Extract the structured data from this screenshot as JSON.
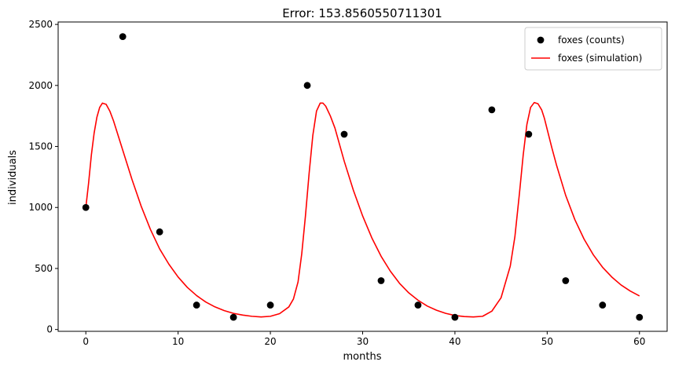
{
  "chart_data": {
    "type": "line",
    "title": "Error: 153.8560550711301",
    "xlabel": "months",
    "ylabel": "individuals",
    "xlim": [
      -3,
      63
    ],
    "ylim": [
      -15,
      2520
    ],
    "x_ticks": [
      0,
      10,
      20,
      30,
      40,
      50,
      60
    ],
    "y_ticks": [
      0,
      500,
      1000,
      1500,
      2000,
      2500
    ],
    "grid": false,
    "legend_position": "top-right",
    "series": [
      {
        "name": "foxes (counts)",
        "kind": "scatter",
        "color": "#000000",
        "marker": "circle",
        "x": [
          0,
          4,
          8,
          12,
          16,
          20,
          24,
          28,
          32,
          36,
          40,
          44,
          48,
          52,
          56,
          60
        ],
        "y": [
          1000,
          2400,
          800,
          200,
          100,
          200,
          2000,
          1600,
          400,
          200,
          100,
          1800,
          1600,
          400,
          200,
          100
        ]
      },
      {
        "name": "foxes (simulation)",
        "kind": "line",
        "color": "#ff0000",
        "x": [
          0,
          0.3,
          0.6,
          0.9,
          1.2,
          1.5,
          1.8,
          2.2,
          2.6,
          3,
          4,
          5,
          6,
          7,
          8,
          9,
          10,
          11,
          12,
          13,
          14,
          15,
          16,
          17,
          18,
          19,
          20,
          21,
          22,
          22.5,
          23,
          23.4,
          23.8,
          24.2,
          24.6,
          25,
          25.4,
          25.7,
          26,
          26.5,
          27,
          28,
          29,
          30,
          31,
          32,
          33,
          34,
          35,
          36,
          37,
          38,
          39,
          40,
          41,
          42,
          43,
          44,
          45,
          46,
          46.5,
          47,
          47.4,
          47.8,
          48.2,
          48.6,
          49,
          49.4,
          49.7,
          50,
          50.5,
          51,
          52,
          53,
          54,
          55,
          56,
          57,
          58,
          59,
          60
        ],
        "y": [
          1000,
          1200,
          1430,
          1610,
          1740,
          1820,
          1855,
          1845,
          1790,
          1710,
          1470,
          1230,
          1010,
          820,
          660,
          535,
          430,
          345,
          278,
          225,
          185,
          155,
          132,
          118,
          108,
          103,
          108,
          130,
          185,
          250,
          390,
          620,
          930,
          1280,
          1590,
          1790,
          1855,
          1855,
          1830,
          1750,
          1650,
          1380,
          1140,
          930,
          750,
          600,
          478,
          378,
          300,
          240,
          192,
          158,
          132,
          115,
          106,
          103,
          108,
          150,
          260,
          520,
          760,
          1120,
          1430,
          1680,
          1820,
          1860,
          1850,
          1800,
          1730,
          1640,
          1490,
          1350,
          1100,
          900,
          740,
          612,
          510,
          430,
          365,
          315,
          275
        ]
      }
    ]
  }
}
